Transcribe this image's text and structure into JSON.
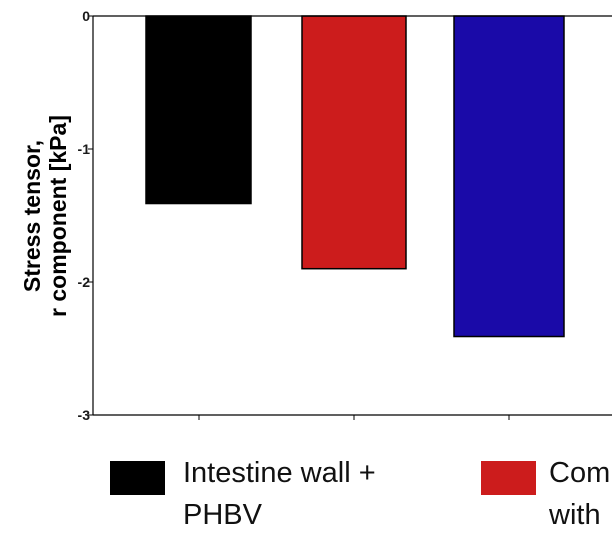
{
  "chart_data": {
    "type": "bar",
    "categories": [
      "Intestine wall + PHBV",
      "Composite with",
      ""
    ],
    "series": [
      {
        "values": [
          -1.41,
          -1.9,
          -2.41
        ]
      }
    ],
    "colors": [
      "#000000",
      "#cc1c1c",
      "#1a0aa8"
    ],
    "ylabel": [
      "Stress tensor,",
      "r component [kPa]"
    ],
    "ylim": [
      -3,
      0
    ],
    "yticks": [
      "0",
      "-1",
      "-2",
      "-3"
    ],
    "ytick_values": [
      0,
      -1,
      -2,
      -3
    ],
    "grid": false,
    "legend": {
      "placement": "bottom",
      "entries": [
        {
          "lines": [
            "Intestine wall +",
            "PHBV"
          ],
          "color": "#000000"
        },
        {
          "lines": [
            "Com",
            "with"
          ],
          "color": "#cc1c1c"
        }
      ]
    }
  }
}
